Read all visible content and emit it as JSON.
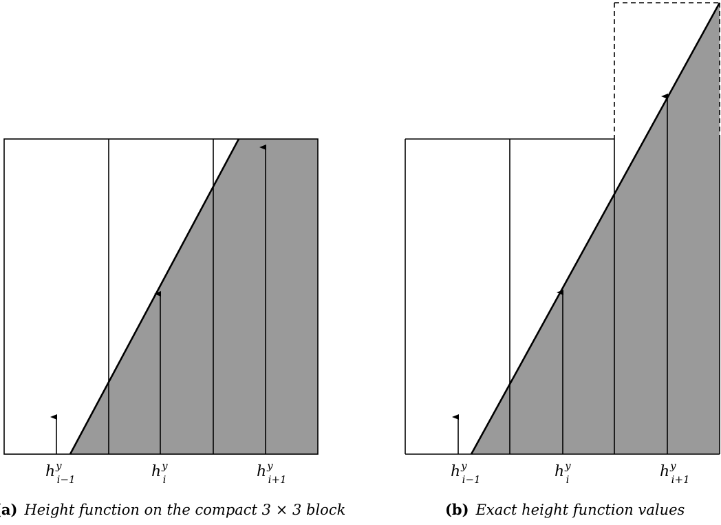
{
  "panels": [
    {
      "id": "a",
      "caption_label": "(a)",
      "caption_text": "Height function on the compact 3 × 3 block",
      "labels": [
        {
          "base": "h",
          "sup": "y",
          "sub": "i−1"
        },
        {
          "base": "h",
          "sup": "y",
          "sub": "i"
        },
        {
          "base": "h",
          "sup": "y",
          "sub": "i+1"
        }
      ],
      "fill_color": "#9a9a9a",
      "stroke_color": "#000000"
    },
    {
      "id": "b",
      "caption_label": "(b)",
      "caption_text": "Exact height function values",
      "labels": [
        {
          "base": "h",
          "sup": "y",
          "sub": "i−1"
        },
        {
          "base": "h",
          "sup": "y",
          "sub": "i"
        },
        {
          "base": "h",
          "sup": "y",
          "sub": "i+1"
        }
      ],
      "fill_color": "#9a9a9a",
      "stroke_color": "#000000"
    }
  ]
}
